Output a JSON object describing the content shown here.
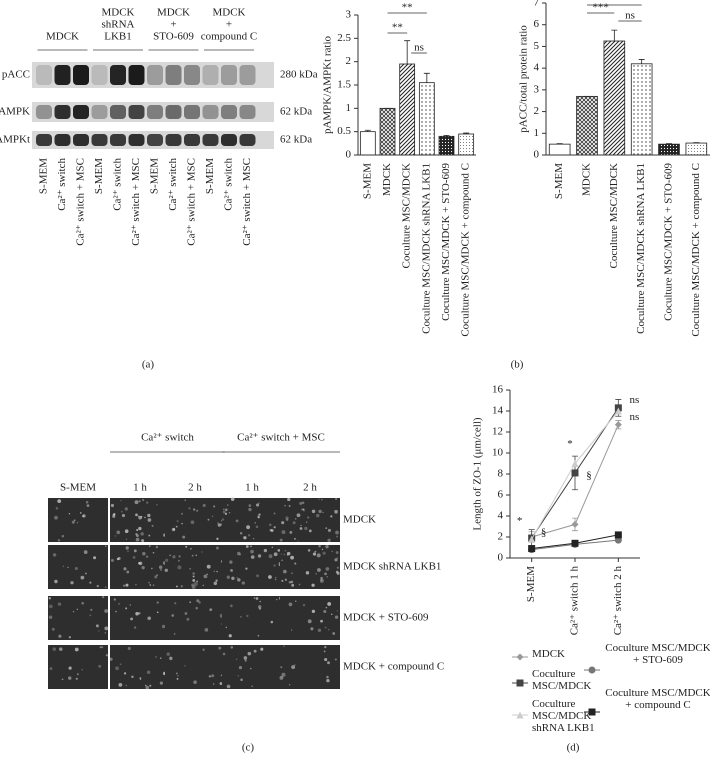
{
  "figure_labels": [
    "(a)",
    "(b)",
    "(c)",
    "(d)"
  ],
  "blot": {
    "groups": [
      [
        "MDCK"
      ],
      [
        "MDCK",
        "shRNA",
        "LKB1"
      ],
      [
        "MDCK",
        "+",
        "STO-609"
      ],
      [
        "MDCK",
        "+",
        "compound C"
      ]
    ],
    "rows": [
      {
        "label": "pACC",
        "size": "280 kDa"
      },
      {
        "label": "pAMPK",
        "size": "62 kDa"
      },
      {
        "label": "AMPKt",
        "size": "62 kDa"
      }
    ],
    "lanes": [
      "S-MEM",
      "Ca²⁺ switch",
      "Ca²⁺ switch + MSC",
      "S-MEM",
      "Ca²⁺ switch",
      "Ca²⁺ switch + MSC",
      "S-MEM",
      "Ca²⁺ switch",
      "Ca²⁺ switch + MSC",
      "S-MEM",
      "Ca²⁺ switch",
      "Ca²⁺ switch + MSC"
    ]
  },
  "microscopy": {
    "header_groups": [
      "Ca²⁺ switch",
      "Ca²⁺ switch + MSC"
    ],
    "columns": [
      "S-MEM",
      "1 h",
      "2 h",
      "1 h",
      "2 h"
    ],
    "rows": [
      "MDCK",
      "MDCK shRNA LKB1",
      "MDCK + STO-609",
      "MDCK + compound C"
    ]
  },
  "chart_data": [
    {
      "type": "bar",
      "y_label": "pAMPK/AMPKt ratio",
      "categories": [
        "S-MEM",
        "MDCK",
        "Coculture MSC/MDCK",
        "Coculture MSC/MDCK shRNA LKB1",
        "Coculture MSC/MDCK + STO-609",
        "Coculture MSC/MDCK + compound C"
      ],
      "values": [
        0.5,
        1.0,
        1.95,
        1.55,
        0.4,
        0.45
      ],
      "errors": [
        0.03,
        0,
        0.5,
        0.2,
        0.02,
        0.02
      ],
      "fill_patterns": [
        "plain",
        "crosshatch",
        "diagonal",
        "dots",
        "dark-dots",
        "light-dots"
      ],
      "ylim": [
        0,
        3
      ],
      "yticks": [
        0,
        0.5,
        1,
        1.5,
        2,
        2.5,
        3
      ],
      "annotations": [
        "**",
        "**",
        "ns"
      ]
    },
    {
      "type": "bar",
      "y_label": "pACC/total protein ratio",
      "categories": [
        "S-MEM",
        "MDCK",
        "Coculture MSC/MDCK",
        "Coculture MSC/MDCK shRNA LKB1",
        "Coculture MSC/MDCK + STO-609",
        "Coculture MSC/MDCK + compound C"
      ],
      "values": [
        0.5,
        2.7,
        5.25,
        4.2,
        0.5,
        0.55
      ],
      "errors": [
        0.02,
        0,
        0.5,
        0.2,
        0.02,
        0.02
      ],
      "fill_patterns": [
        "plain",
        "crosshatch",
        "diagonal",
        "dots",
        "dark-dots",
        "light-dots"
      ],
      "ylim": [
        0,
        7
      ],
      "yticks": [
        0,
        1,
        2,
        3,
        4,
        5,
        6,
        7
      ],
      "annotations": [
        "***",
        "ns"
      ]
    },
    {
      "type": "line",
      "y_label": "Length of ZO-1 (μm/cell)",
      "categories": [
        "S-MEM",
        "Ca²⁺ switch 1 h",
        "Ca²⁺ switch 2 h"
      ],
      "series": [
        {
          "name": "MDCK",
          "color": "#999999",
          "marker": "diamond",
          "values": [
            2.0,
            3.2,
            12.7
          ],
          "errors": [
            0.5,
            0.6,
            0.4
          ]
        },
        {
          "name": "Coculture MSC/MDCK",
          "color": "#444444",
          "marker": "square",
          "values": [
            1.9,
            8.1,
            14.3
          ],
          "errors": [
            0.8,
            1.6,
            0.8
          ]
        },
        {
          "name": "Coculture MSC/MDCK shRNA LKB1",
          "color": "#cccccc",
          "marker": "triangle",
          "values": [
            1.8,
            9.0,
            14.0
          ]
        },
        {
          "name": "Coculture MSC/MDCK + STO-609",
          "color": "#777777",
          "marker": "circle",
          "values": [
            0.8,
            1.3,
            1.7
          ]
        },
        {
          "name": "Coculture MSC/MDCK + compound C",
          "color": "#222222",
          "marker": "square",
          "values": [
            0.9,
            1.4,
            2.2
          ]
        }
      ],
      "ylim": [
        0,
        16
      ],
      "yticks": [
        0,
        2,
        4,
        6,
        8,
        10,
        12,
        14,
        16
      ],
      "annotations": [
        "*",
        "§",
        "*",
        "§",
        "ns",
        "ns"
      ]
    }
  ]
}
